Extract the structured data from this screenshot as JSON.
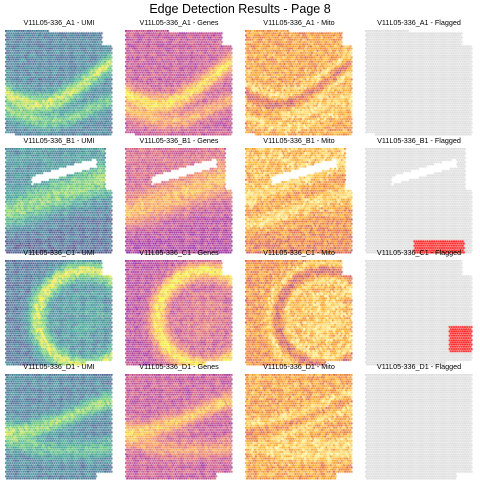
{
  "page_title": "Edge Detection Results - Page 8",
  "colors": {
    "viridis": [
      "#440154",
      "#3b528b",
      "#21918c",
      "#5ec962",
      "#fde725"
    ],
    "plasma": [
      "#0d0887",
      "#7e03a8",
      "#cc4778",
      "#f89540",
      "#f0f921"
    ],
    "inferno": [
      "#000004",
      "#420a68",
      "#932667",
      "#dd513a",
      "#fca50a",
      "#fcffa4"
    ],
    "flag_off": "#d9d9d9",
    "flag_on": "#ff0000"
  },
  "rows": [
    {
      "sample": "V11L05-336_A1",
      "panels": [
        {
          "title": "V11L05-336_A1 - UMI",
          "colormap": "viridis"
        },
        {
          "title": "V11L05-336_A1 - Genes",
          "colormap": "plasma"
        },
        {
          "title": "V11L05-336_A1 - Mito",
          "colormap": "inferno"
        },
        {
          "title": "V11L05-336_A1 - Flagged",
          "colormap": "flagged"
        }
      ]
    },
    {
      "sample": "V11L05-336_B1",
      "panels": [
        {
          "title": "V11L05-336_B1 - UMI",
          "colormap": "viridis"
        },
        {
          "title": "V11L05-336_B1 - Genes",
          "colormap": "plasma"
        },
        {
          "title": "V11L05-336_B1 - Mito",
          "colormap": "inferno"
        },
        {
          "title": "V11L05-336_B1 - Flagged",
          "colormap": "flagged"
        }
      ]
    },
    {
      "sample": "V11L05-336_C1",
      "panels": [
        {
          "title": "V11L05-336_C1 - UMI",
          "colormap": "viridis"
        },
        {
          "title": "V11L05-336_C1 - Genes",
          "colormap": "plasma"
        },
        {
          "title": "V11L05-336_C1 - Mito",
          "colormap": "inferno"
        },
        {
          "title": "V11L05-336_C1 - Flagged",
          "colormap": "flagged"
        }
      ]
    },
    {
      "sample": "V11L05-336_D1",
      "panels": [
        {
          "title": "V11L05-336_D1 - UMI",
          "colormap": "viridis"
        },
        {
          "title": "V11L05-336_D1 - Genes",
          "colormap": "plasma"
        },
        {
          "title": "V11L05-336_D1 - Mito",
          "colormap": "inferno"
        },
        {
          "title": "V11L05-336_D1 - Flagged",
          "colormap": "flagged"
        }
      ]
    }
  ]
}
